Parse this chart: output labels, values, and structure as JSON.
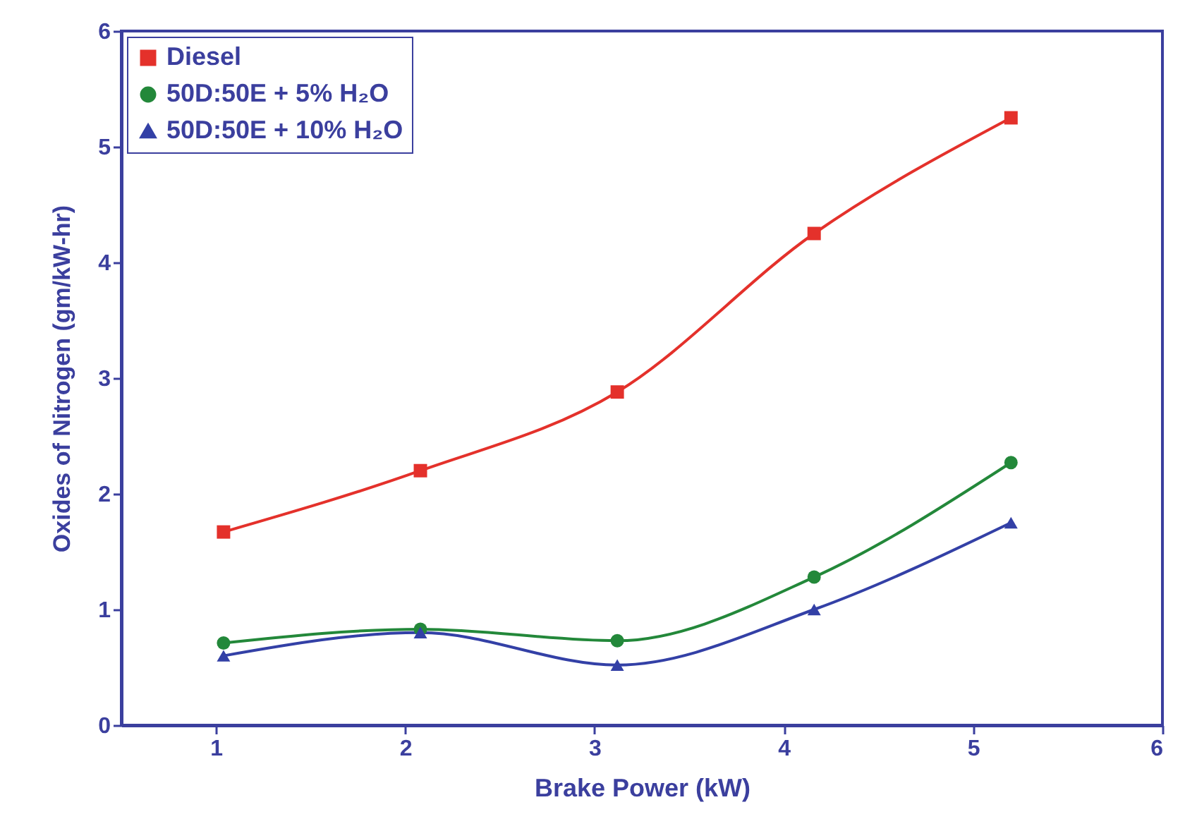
{
  "chart_data": {
    "type": "line",
    "xlabel": "Brake Power (kW)",
    "ylabel": "Oxides of Nitrogen (gm/kW-hr)",
    "x": [
      1.04,
      2.08,
      3.12,
      4.16,
      5.2
    ],
    "series": [
      {
        "name": "Diesel",
        "color": "#e4312b",
        "marker": "square",
        "values": [
          1.67,
          2.2,
          2.88,
          4.25,
          5.25
        ]
      },
      {
        "name": "50D:50E + 5% H₂O",
        "color": "#23883a",
        "marker": "circle",
        "values": [
          0.71,
          0.83,
          0.73,
          1.28,
          2.27
        ]
      },
      {
        "name": "50D:50E + 10% H₂O",
        "color": "#3340a6",
        "marker": "triangle",
        "values": [
          0.6,
          0.8,
          0.52,
          1.0,
          1.75
        ]
      }
    ],
    "xlim": [
      0.5,
      6
    ],
    "xticks": [
      1,
      2,
      3,
      4,
      5,
      6
    ],
    "ylim": [
      0,
      6
    ],
    "yticks": [
      0,
      1,
      2,
      3,
      4,
      5,
      6
    ],
    "grid": false,
    "legend": "top left",
    "line_style": "solid"
  }
}
